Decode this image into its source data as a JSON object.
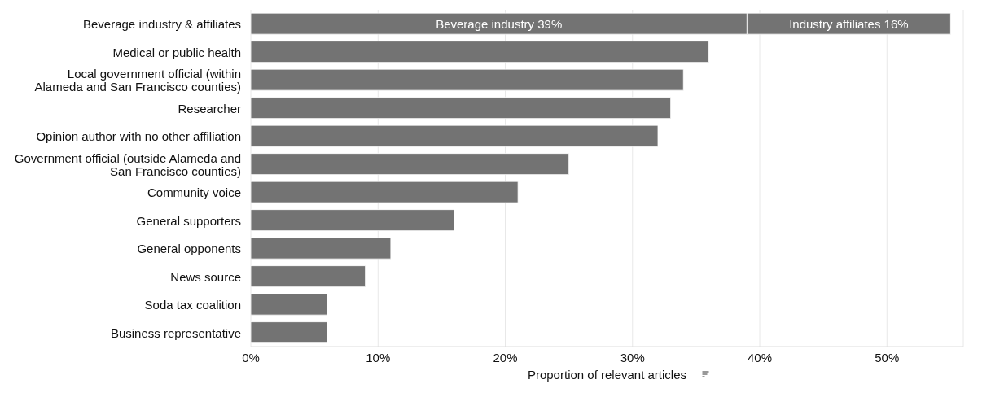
{
  "chart_data": {
    "type": "bar",
    "orientation": "horizontal",
    "stacked": true,
    "xlabel": "Proportion of relevant articles",
    "categories": [
      "Beverage industry & affiliates",
      "Medical or public health",
      "Local government official (within Alameda and San Francisco counties)",
      "Researcher",
      "Opinion author with no other affiliation",
      "Government official (outside Alameda and San Francisco counties)",
      "Community voice",
      "General supporters",
      "General opponents",
      "News source",
      "Soda tax coalition",
      "Business representative"
    ],
    "series": [
      {
        "color": "#737373",
        "values": [
          39,
          36,
          34,
          33,
          32,
          25,
          21,
          16,
          11,
          9,
          6,
          6
        ],
        "value_labels": [
          "Beverage industry 39%",
          null,
          null,
          null,
          null,
          null,
          null,
          null,
          null,
          null,
          null,
          null
        ]
      },
      {
        "color": "#737373",
        "values": [
          16,
          null,
          null,
          null,
          null,
          null,
          null,
          null,
          null,
          null,
          null,
          null
        ],
        "value_labels": [
          "Industry affiliates 16%",
          null,
          null,
          null,
          null,
          null,
          null,
          null,
          null,
          null,
          null,
          null
        ]
      }
    ],
    "xlim": [
      0,
      56
    ],
    "xticks": [
      {
        "value": 0,
        "label": "0%"
      },
      {
        "value": 10,
        "label": "10%"
      },
      {
        "value": 20,
        "label": "20%"
      },
      {
        "value": 30,
        "label": "30%"
      },
      {
        "value": 40,
        "label": "40%"
      },
      {
        "value": 50,
        "label": "50%"
      }
    ],
    "grid": "x"
  }
}
